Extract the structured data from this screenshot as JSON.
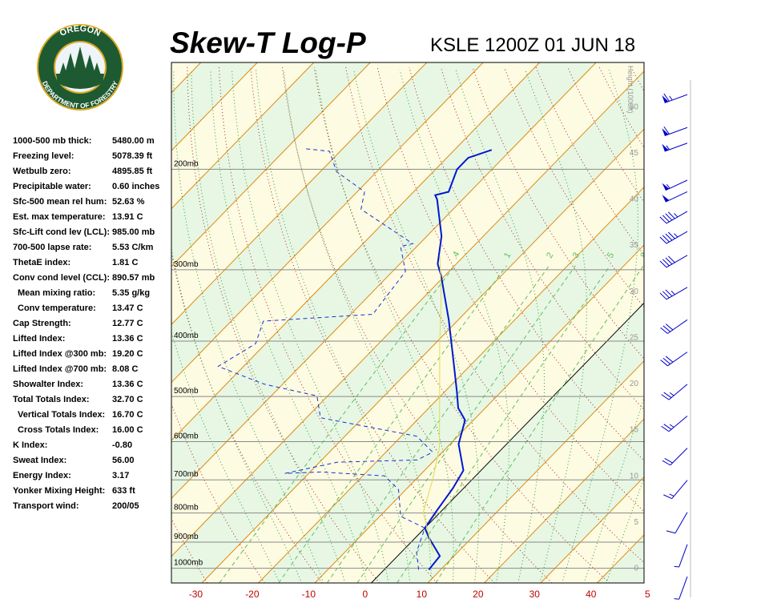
{
  "logo": {
    "top": "OREGON",
    "bottom": "DEPARTMENT OF FORESTRY"
  },
  "indices": [
    {
      "label": "1000-500 mb thick:",
      "value": "5480.00 m"
    },
    {
      "label": "Freezing level:",
      "value": "5078.39 ft"
    },
    {
      "label": "Wetbulb zero:",
      "value": "4895.85 ft"
    },
    {
      "label": "Precipitable water:",
      "value": "0.60 inches"
    },
    {
      "label": "Sfc-500 mean rel hum:",
      "value": "52.63 %"
    },
    {
      "label": "Est. max temperature:",
      "value": "13.91 C"
    },
    {
      "label": "Sfc-Lift cond lev (LCL):",
      "value": "985.00 mb"
    },
    {
      "label": "700-500 lapse rate:",
      "value": "5.53 C/km"
    },
    {
      "label": "ThetaE index:",
      "value": "1.81 C"
    },
    {
      "label": "Conv cond level (CCL):",
      "value": "890.57 mb"
    },
    {
      "label": "Mean mixing ratio:",
      "value": "5.35 g/kg",
      "indent": true
    },
    {
      "label": "Conv temperature:",
      "value": "13.47 C",
      "indent": true
    },
    {
      "label": "Cap Strength:",
      "value": "12.77 C"
    },
    {
      "label": "Lifted Index:",
      "value": "13.36 C"
    },
    {
      "label": "Lifted Index @300 mb:",
      "value": "19.20 C"
    },
    {
      "label": "Lifted Index @700 mb:",
      "value": "8.08 C"
    },
    {
      "label": "Showalter Index:",
      "value": "13.36 C"
    },
    {
      "label": "Total Totals Index:",
      "value": "32.70 C"
    },
    {
      "label": "Vertical Totals Index:",
      "value": "16.70 C",
      "indent": true
    },
    {
      "label": "Cross Totals Index:",
      "value": "16.00 C",
      "indent": true
    },
    {
      "label": "K Index:",
      "value": "-0.80"
    },
    {
      "label": "Sweat Index:",
      "value": "56.00"
    },
    {
      "label": "Energy Index:",
      "value": "3.17"
    },
    {
      "label": "Yonker Mixing Height:",
      "value": "633 ft"
    },
    {
      "label": "Transport wind:",
      "value": "200/05"
    }
  ],
  "chart_data": {
    "type": "skewt",
    "title": "Skew-T Log-P",
    "subtitle": "KSLE 1200Z 01 JUN 18",
    "y2label": "Height (1000ft)",
    "log_scale": true,
    "grid": true,
    "xlim": [
      -35.4,
      48.3
    ],
    "xticks": [
      -30,
      -20,
      -10,
      0,
      10,
      20,
      30,
      40,
      {
        "value": 50,
        "label": "5"
      }
    ],
    "ylim": [
      1061,
      130
    ],
    "yticks": [
      {
        "value": 1000,
        "label": "1000mb"
      },
      {
        "value": 900,
        "label": "900mb"
      },
      {
        "value": 800,
        "label": "800mb"
      },
      {
        "value": 700,
        "label": "700mb"
      },
      {
        "value": 600,
        "label": "600mb"
      },
      {
        "value": 500,
        "label": "500mb"
      },
      {
        "value": 400,
        "label": "400mb"
      },
      {
        "value": 300,
        "label": "300mb"
      },
      {
        "value": 200,
        "label": "200mb"
      }
    ],
    "y2lim": [
      -1.6,
      54.8
    ],
    "y2ticks": [
      0,
      5,
      10,
      15,
      20,
      25,
      30,
      35,
      40,
      45,
      50
    ],
    "mixing_ratio_lines": [
      {
        "value": 0.4,
        "label": ".4"
      },
      {
        "value": 1,
        "label": "1"
      },
      {
        "value": 2,
        "label": "2"
      },
      {
        "value": 3,
        "label": "3"
      },
      {
        "value": 5,
        "label": "5"
      },
      {
        "value": 8,
        "label": "8"
      }
    ],
    "series": [
      {
        "color": "#0018d0",
        "width": 2,
        "dashed": false,
        "x": [
          7.9,
          7.5,
          2.4,
          0.0,
          -0.9,
          -1.9,
          -3.1,
          -8.5,
          -11.5,
          -14.8,
          -17.8,
          -23.9,
          -31.7,
          -40.7,
          -43.3,
          -47.4,
          -54.5,
          -55.6,
          -53.8,
          -56.2,
          -56.2,
          -53.4
        ],
        "values": [
          1006,
          952,
          884,
          850,
          792,
          724,
          674,
          606,
          550,
          524,
          491,
          432,
          367,
          307,
          293,
          262,
          226,
          222,
          219,
          200,
          191,
          185
        ]
      },
      {
        "color": "#1a2fd0",
        "width": 1,
        "dashed": true,
        "x": [
          6.1,
          2.7,
          0.0,
          -6.3,
          -11.3,
          -16.1,
          -28.1,
          -34.2,
          -26.9,
          -13.1,
          -11.7,
          -17.3,
          -37.5,
          -41.9,
          -53.2,
          -64.5,
          -61.8,
          -64.3,
          -46.1,
          -47.7,
          -52.9,
          -51.2,
          -66.3,
          -68.7,
          -77.1,
          -81.9,
          -86.8
        ],
        "values": [
          1006,
          937,
          850,
          811,
          728,
          689,
          678,
          682,
          652,
          646,
          626,
          587,
          545,
          499,
          476,
          443,
          404,
          369,
          359,
          302,
          273,
          270,
          235,
          219,
          202,
          186,
          184
        ]
      },
      {
        "color": "#e4dc50",
        "width": 1,
        "dashed": false,
        "x": [
          5.6,
          -3.0,
          -6.9,
          -11.2,
          -19.5,
          -29.2,
          -37.2,
          -44.4
        ],
        "values": [
          937,
          798,
          701,
          616,
          507,
          404,
          333,
          283
        ]
      }
    ],
    "wind_barbs": [
      {
        "p": 148,
        "dir": 250,
        "speed": 65
      },
      {
        "p": 169,
        "dir": 250,
        "speed": 60
      },
      {
        "p": 180,
        "dir": 250,
        "speed": 55
      },
      {
        "p": 209,
        "dir": 245,
        "speed": 55
      },
      {
        "p": 219,
        "dir": 245,
        "speed": 50
      },
      {
        "p": 237,
        "dir": 240,
        "speed": 45
      },
      {
        "p": 257,
        "dir": 240,
        "speed": 45
      },
      {
        "p": 283,
        "dir": 240,
        "speed": 40
      },
      {
        "p": 322,
        "dir": 240,
        "speed": 35
      },
      {
        "p": 367,
        "dir": 235,
        "speed": 30
      },
      {
        "p": 418,
        "dir": 235,
        "speed": 30
      },
      {
        "p": 476,
        "dir": 230,
        "speed": 25
      },
      {
        "p": 541,
        "dir": 230,
        "speed": 25
      },
      {
        "p": 616,
        "dir": 225,
        "speed": 20
      },
      {
        "p": 701,
        "dir": 220,
        "speed": 15
      },
      {
        "p": 798,
        "dir": 210,
        "speed": 10
      },
      {
        "p": 908,
        "dir": 200,
        "speed": 5
      },
      {
        "p": 1034,
        "dir": 200,
        "speed": 5
      }
    ]
  }
}
